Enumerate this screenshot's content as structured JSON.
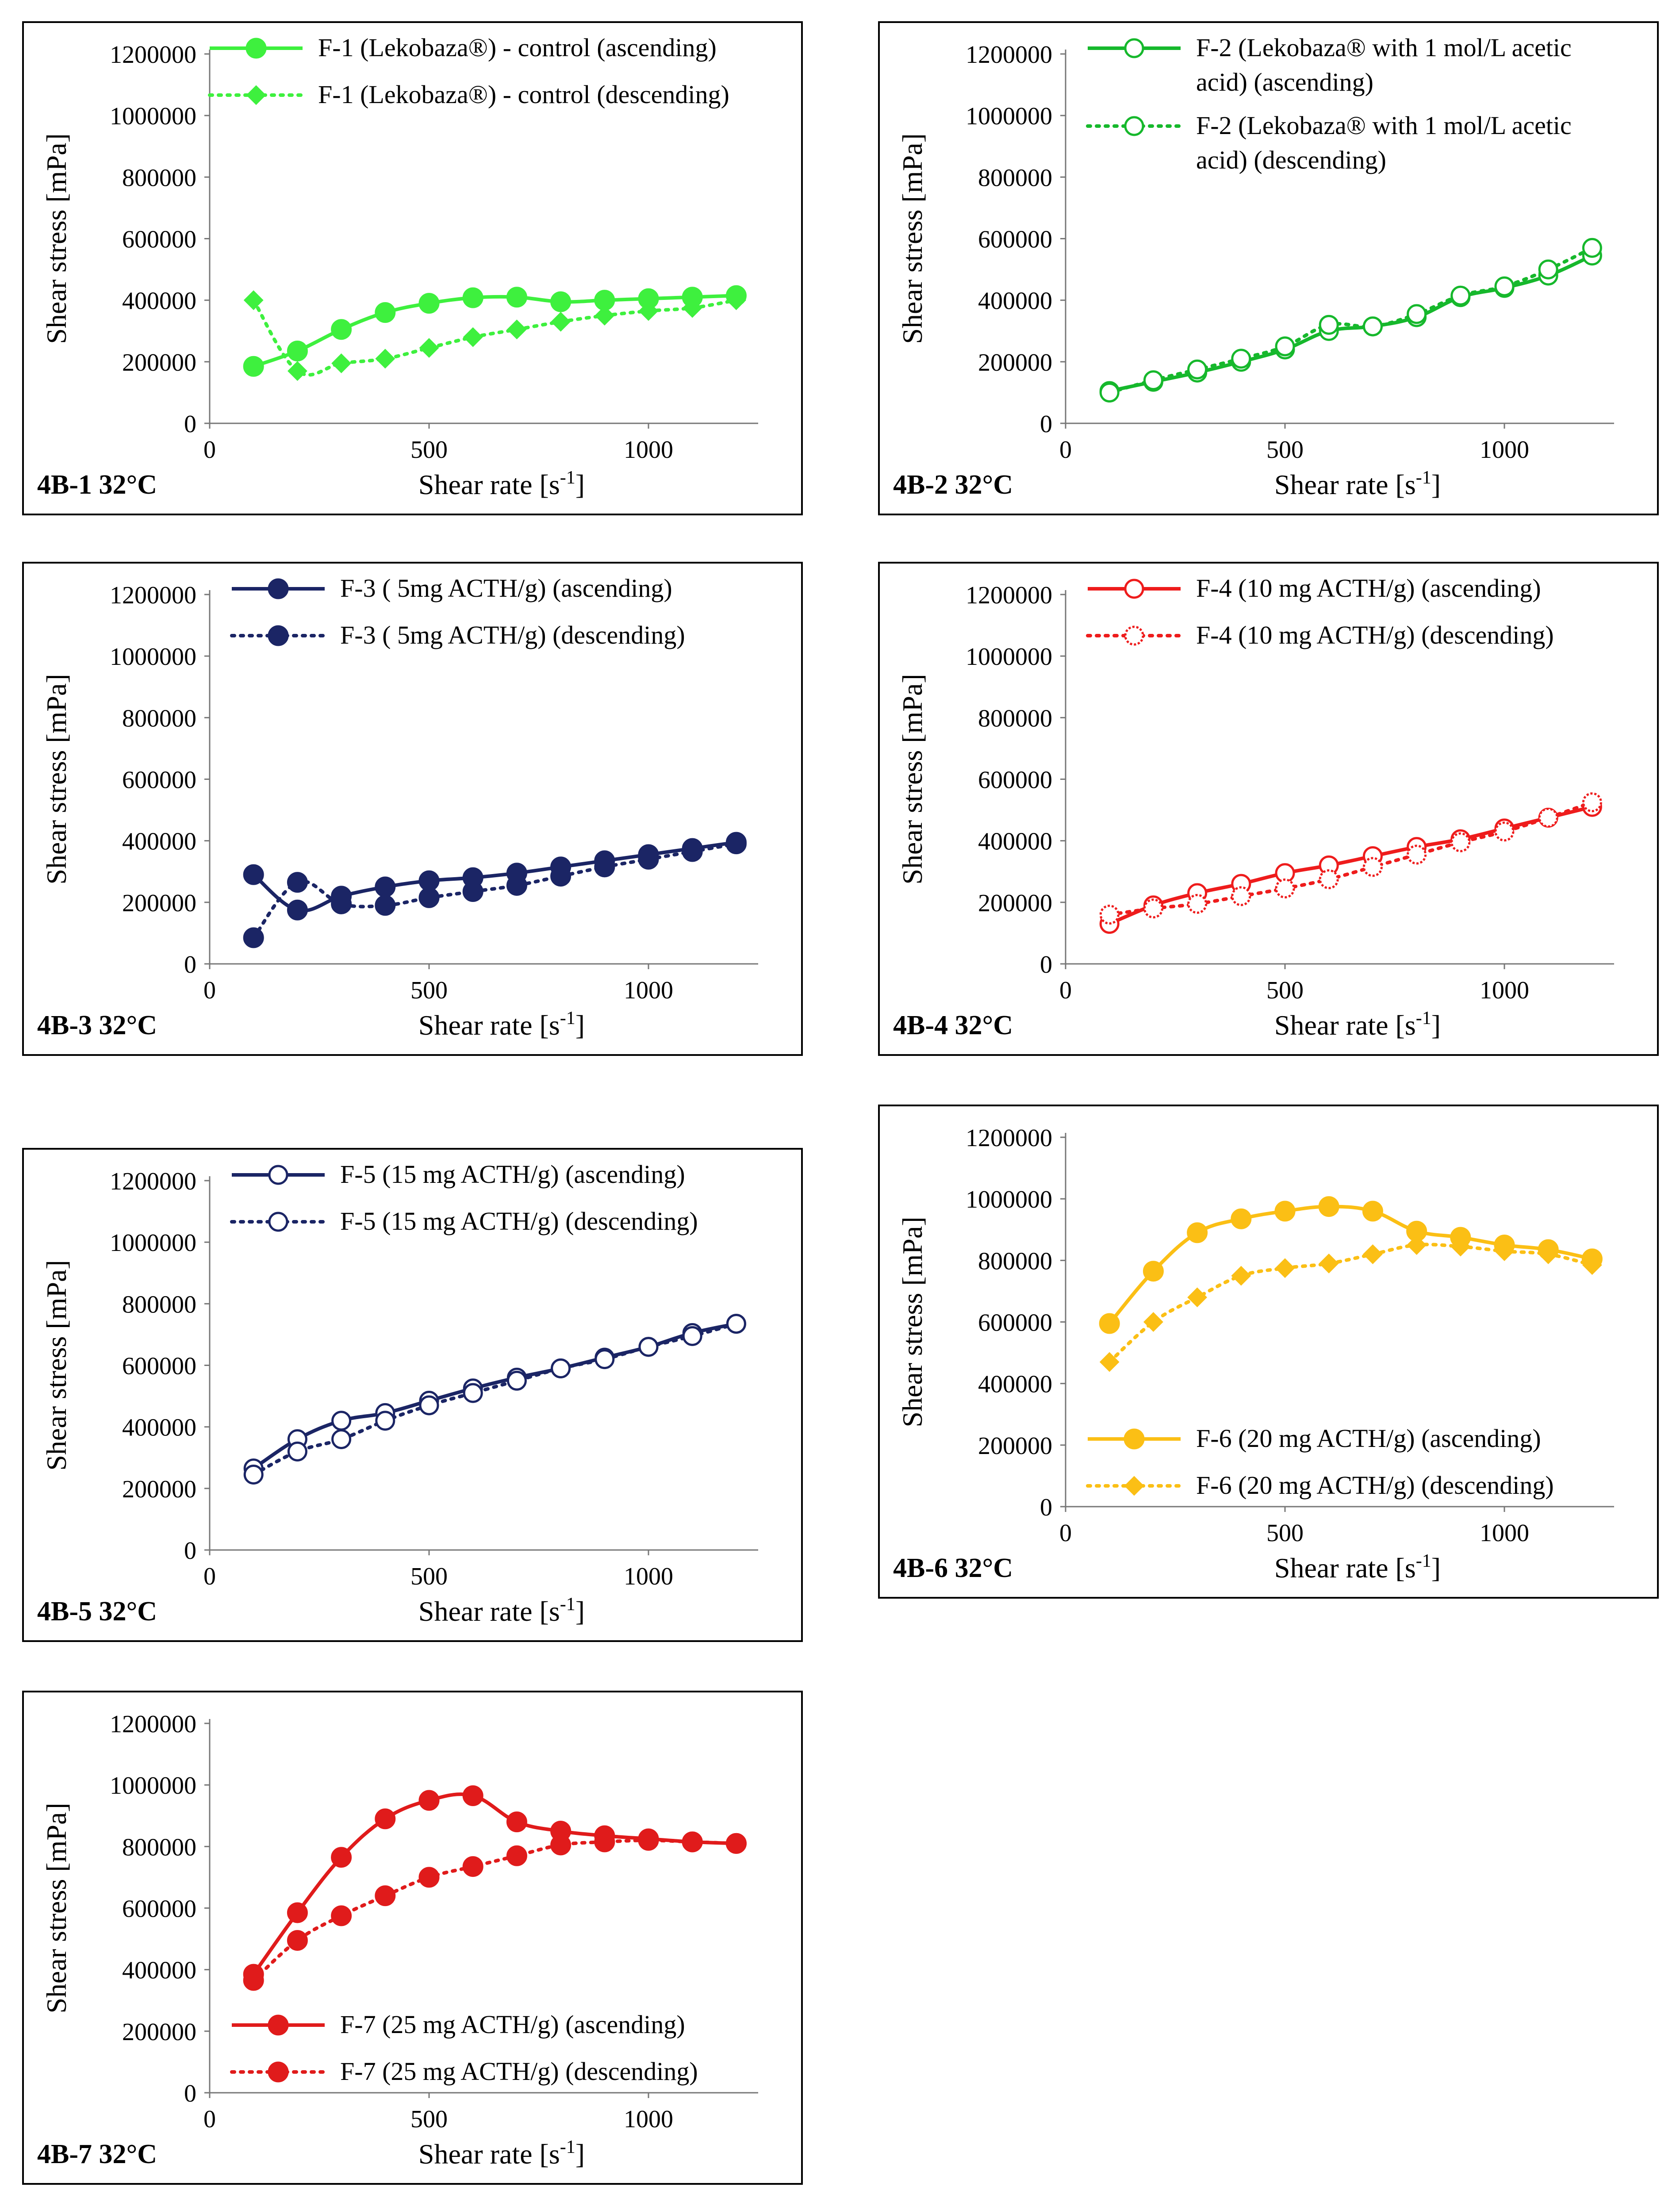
{
  "chart_data": [
    {
      "id": "4B-1",
      "type": "line",
      "panel_label": "4B-1 32°C",
      "xlabel": "Shear rate [s",
      "xlabel_sup": "-1",
      "xlabel_end": "]",
      "ylabel": "Shear stress [mPa]",
      "xlim": [
        0,
        1250
      ],
      "ylim": [
        0,
        1200000
      ],
      "xticks": [
        "0",
        "500",
        "1000"
      ],
      "yticks": [
        "0",
        "200000",
        "400000",
        "600000",
        "800000",
        "1000000",
        "1200000"
      ],
      "legend_position": "top-right",
      "color": "#3ef03e",
      "series": [
        {
          "name": "F-1 (Lekobaza®) - control (ascending)",
          "style": "solid",
          "marker": "filled-circle",
          "x": [
            100,
            200,
            300,
            400,
            500,
            600,
            700,
            800,
            900,
            1000,
            1100,
            1200
          ],
          "values": [
            185000,
            235000,
            305000,
            360000,
            390000,
            408000,
            410000,
            395000,
            400000,
            405000,
            410000,
            415000
          ]
        },
        {
          "name": "F-1 (Lekobaza®) - control (descending)",
          "style": "dotted",
          "marker": "filled-diamond",
          "x": [
            100,
            200,
            300,
            400,
            500,
            600,
            700,
            800,
            900,
            1000,
            1100,
            1200
          ],
          "values": [
            400000,
            170000,
            195000,
            210000,
            245000,
            280000,
            305000,
            330000,
            350000,
            365000,
            375000,
            400000
          ]
        }
      ]
    },
    {
      "id": "4B-2",
      "type": "line",
      "panel_label": "4B-2 32°C",
      "xlabel": "Shear rate [s",
      "xlabel_sup": "-1",
      "xlabel_end": "]",
      "ylabel": "Shear stress [mPa]",
      "xlim": [
        0,
        1250
      ],
      "ylim": [
        0,
        1200000
      ],
      "xticks": [
        "0",
        "500",
        "1000"
      ],
      "yticks": [
        "0",
        "200000",
        "400000",
        "600000",
        "800000",
        "1000000",
        "1200000"
      ],
      "legend_position": "top-right",
      "color": "#16b82c",
      "series": [
        {
          "name": "F-2 (Lekobaza® with 1 mol/L acetic acid) (ascending)",
          "name_lines": [
            "F-2 (Lekobaza® with 1 mol/L acetic",
            "acid) (ascending)"
          ],
          "style": "solid",
          "marker": "open-circle",
          "x": [
            100,
            200,
            300,
            400,
            500,
            600,
            700,
            800,
            900,
            1000,
            1100,
            1200
          ],
          "values": [
            105000,
            135000,
            165000,
            200000,
            240000,
            300000,
            315000,
            345000,
            410000,
            440000,
            480000,
            545000
          ]
        },
        {
          "name": "F-2 (Lekobaza® with 1 mol/L acetic acid) (descending)",
          "name_lines": [
            "F-2 (Lekobaza® with 1 mol/L acetic",
            "acid) (descending)"
          ],
          "style": "dotted",
          "marker": "open-circle",
          "x": [
            100,
            200,
            300,
            400,
            500,
            600,
            700,
            800,
            900,
            1000,
            1100,
            1200
          ],
          "values": [
            100000,
            140000,
            175000,
            210000,
            250000,
            320000,
            315000,
            355000,
            415000,
            445000,
            500000,
            570000
          ]
        }
      ]
    },
    {
      "id": "4B-3",
      "type": "line",
      "panel_label": "4B-3 32°C",
      "xlabel": "Shear rate [s",
      "xlabel_sup": "-1",
      "xlabel_end": "]",
      "ylabel": "Shear stress [mPa]",
      "xlim": [
        0,
        1250
      ],
      "ylim": [
        0,
        1200000
      ],
      "xticks": [
        "0",
        "500",
        "1000"
      ],
      "yticks": [
        "0",
        "200000",
        "400000",
        "600000",
        "800000",
        "1000000",
        "1200000"
      ],
      "legend_position": "top-right",
      "color": "#1b2565",
      "series": [
        {
          "name": "F-3 ( 5mg ACTH/g) (ascending)",
          "style": "solid",
          "marker": "filled-circle",
          "x": [
            100,
            200,
            300,
            400,
            500,
            600,
            700,
            800,
            900,
            1000,
            1100,
            1200
          ],
          "values": [
            290000,
            175000,
            220000,
            250000,
            270000,
            280000,
            295000,
            315000,
            335000,
            355000,
            375000,
            395000
          ]
        },
        {
          "name": "F-3 ( 5mg ACTH/g) (descending)",
          "style": "dotted",
          "marker": "filled-circle",
          "x": [
            100,
            200,
            300,
            400,
            500,
            600,
            700,
            800,
            900,
            1000,
            1100,
            1200
          ],
          "values": [
            85000,
            265000,
            195000,
            190000,
            215000,
            235000,
            255000,
            285000,
            315000,
            340000,
            365000,
            390000
          ]
        }
      ]
    },
    {
      "id": "4B-4",
      "type": "line",
      "panel_label": "4B-4 32°C",
      "xlabel": "Shear rate [s",
      "xlabel_sup": "-1",
      "xlabel_end": "]",
      "ylabel": "Shear stress [mPa]",
      "xlim": [
        0,
        1250
      ],
      "ylim": [
        0,
        1200000
      ],
      "xticks": [
        "0",
        "500",
        "1000"
      ],
      "yticks": [
        "0",
        "200000",
        "400000",
        "600000",
        "800000",
        "1000000",
        "1200000"
      ],
      "legend_position": "top-right",
      "color": "#ee1c1c",
      "series": [
        {
          "name": "F-4 (10 mg ACTH/g)  (ascending)",
          "style": "solid",
          "marker": "open-circle",
          "x": [
            100,
            200,
            300,
            400,
            500,
            600,
            700,
            800,
            900,
            1000,
            1100,
            1200
          ],
          "values": [
            130000,
            190000,
            230000,
            260000,
            295000,
            320000,
            350000,
            380000,
            405000,
            440000,
            475000,
            510000
          ]
        },
        {
          "name": "F-4 (10 mg ACTH/g) (descending)",
          "style": "dotted",
          "marker": "open-circle-dotted",
          "x": [
            100,
            200,
            300,
            400,
            500,
            600,
            700,
            800,
            900,
            1000,
            1100,
            1200
          ],
          "values": [
            160000,
            180000,
            195000,
            220000,
            245000,
            275000,
            315000,
            355000,
            395000,
            430000,
            475000,
            525000
          ]
        }
      ]
    },
    {
      "id": "4B-5",
      "type": "line",
      "panel_label": "4B-5 32°C",
      "xlabel": "Shear rate [s",
      "xlabel_sup": "-1",
      "xlabel_end": "]",
      "ylabel": "Shear stress [mPa]",
      "xlim": [
        0,
        1250
      ],
      "ylim": [
        0,
        1200000
      ],
      "xticks": [
        "0",
        "500",
        "1000"
      ],
      "yticks": [
        "0",
        "200000",
        "400000",
        "600000",
        "800000",
        "1000000",
        "1200000"
      ],
      "legend_position": "top-right",
      "color": "#1b2565",
      "series": [
        {
          "name": "F-5 (15 mg ACTH/g) (ascending)",
          "style": "solid",
          "marker": "open-circle",
          "x": [
            100,
            200,
            300,
            400,
            500,
            600,
            700,
            800,
            900,
            1000,
            1100,
            1200
          ],
          "values": [
            265000,
            360000,
            420000,
            445000,
            485000,
            525000,
            560000,
            590000,
            625000,
            660000,
            705000,
            735000
          ]
        },
        {
          "name": "F-5 (15 mg ACTH/g) (descending)",
          "style": "dotted",
          "marker": "open-circle",
          "x": [
            100,
            200,
            300,
            400,
            500,
            600,
            700,
            800,
            900,
            1000,
            1100,
            1200
          ],
          "values": [
            245000,
            320000,
            360000,
            420000,
            470000,
            510000,
            550000,
            590000,
            620000,
            660000,
            695000,
            735000
          ]
        }
      ]
    },
    {
      "id": "4B-6",
      "type": "line",
      "panel_label": "4B-6 32°C",
      "xlabel": "Shear rate [s",
      "xlabel_sup": "-1",
      "xlabel_end": "]",
      "ylabel": "Shear stress [mPa]",
      "xlim": [
        0,
        1250
      ],
      "ylim": [
        0,
        1200000
      ],
      "xticks": [
        "0",
        "500",
        "1000"
      ],
      "yticks": [
        "0",
        "200000",
        "400000",
        "600000",
        "800000",
        "1000000",
        "1200000"
      ],
      "legend_position": "bottom-right",
      "color": "#fbbf15",
      "series": [
        {
          "name": "F-6 (20 mg ACTH/g) (ascending)",
          "style": "solid",
          "marker": "filled-circle",
          "x": [
            100,
            200,
            300,
            400,
            500,
            600,
            700,
            800,
            900,
            1000,
            1100,
            1200
          ],
          "values": [
            595000,
            765000,
            890000,
            935000,
            960000,
            975000,
            960000,
            895000,
            875000,
            850000,
            835000,
            805000
          ]
        },
        {
          "name": "F-6 (20 mg ACTH/g) (descending)",
          "style": "dotted",
          "marker": "filled-diamond",
          "x": [
            100,
            200,
            300,
            400,
            500,
            600,
            700,
            800,
            900,
            1000,
            1100,
            1200
          ],
          "values": [
            470000,
            600000,
            680000,
            750000,
            775000,
            790000,
            820000,
            850000,
            845000,
            830000,
            820000,
            785000
          ]
        }
      ]
    },
    {
      "id": "4B-7",
      "type": "line",
      "panel_label": "4B-7 32°C",
      "xlabel": "Shear rate [s",
      "xlabel_sup": "-1",
      "xlabel_end": "]",
      "ylabel": "Shear stress [mPa]",
      "xlim": [
        0,
        1250
      ],
      "ylim": [
        0,
        1200000
      ],
      "xticks": [
        "0",
        "500",
        "1000"
      ],
      "yticks": [
        "0",
        "200000",
        "400000",
        "600000",
        "800000",
        "1000000",
        "1200000"
      ],
      "legend_position": "bottom-right",
      "color": "#e01b1b",
      "series": [
        {
          "name": "F-7 (25 mg ACTH/g) (ascending)",
          "style": "solid",
          "marker": "filled-circle",
          "x": [
            100,
            200,
            300,
            400,
            500,
            600,
            700,
            800,
            900,
            1000,
            1100,
            1200
          ],
          "values": [
            385000,
            585000,
            765000,
            890000,
            950000,
            965000,
            880000,
            850000,
            835000,
            825000,
            815000,
            810000
          ]
        },
        {
          "name": "F-7 (25 mg ACTH/g) (descending)",
          "style": "dotted",
          "marker": "filled-circle",
          "x": [
            100,
            200,
            300,
            400,
            500,
            600,
            700,
            800,
            900,
            1000,
            1100,
            1200
          ],
          "values": [
            365000,
            495000,
            575000,
            640000,
            700000,
            735000,
            770000,
            805000,
            815000,
            820000,
            815000,
            810000
          ]
        }
      ]
    }
  ]
}
